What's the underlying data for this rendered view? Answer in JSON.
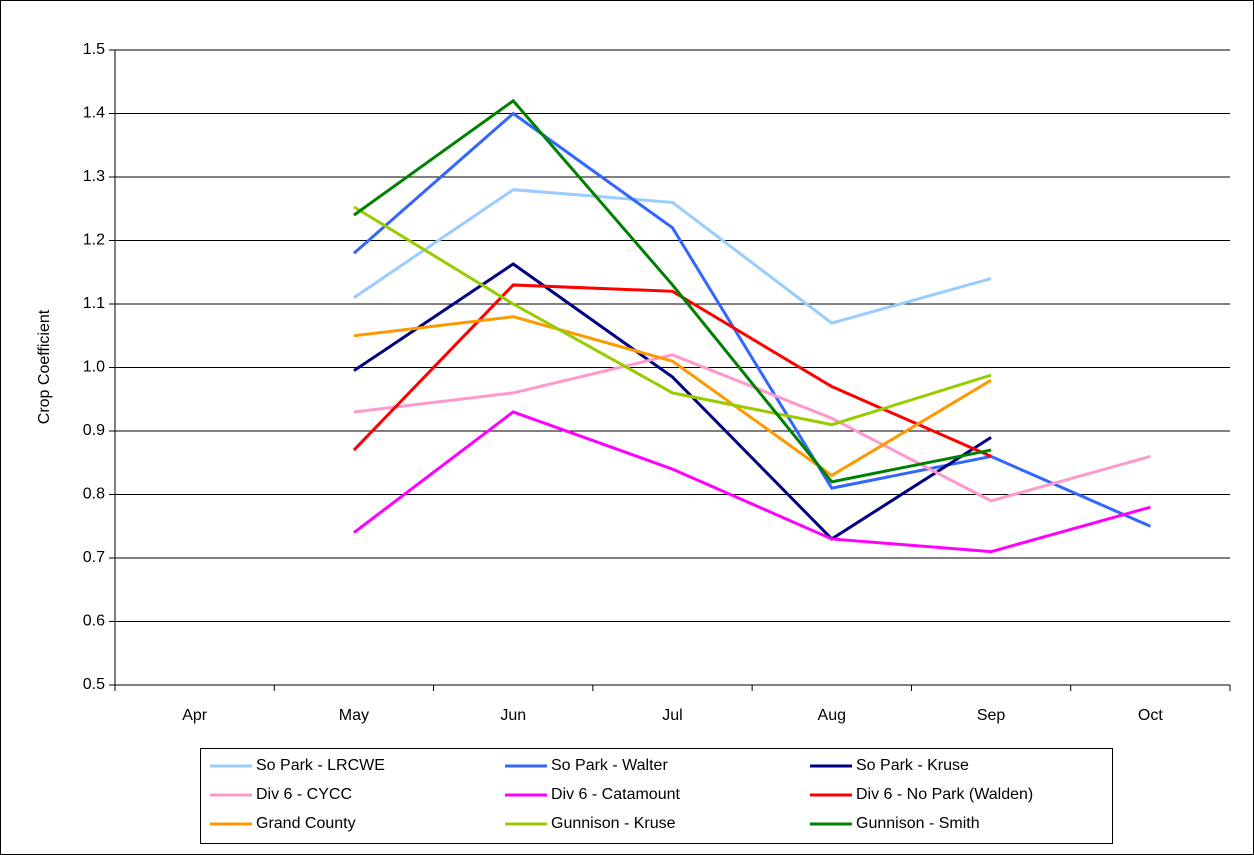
{
  "chart_data": {
    "type": "line",
    "y_label": "Crop Coefficient",
    "categories": [
      "Apr",
      "May",
      "Jun",
      "Jul",
      "Aug",
      "Sep",
      "Oct"
    ],
    "ylim": [
      0.5,
      1.5
    ],
    "yticks": [
      0.5,
      0.6,
      0.7,
      0.8,
      0.9,
      {
        "value": 1,
        "label": "1.0"
      },
      1.1,
      1.2,
      1.3,
      1.4,
      1.5
    ],
    "grid": true,
    "legend": "bottom",
    "series": [
      {
        "name": "So Park - LRCWE",
        "color": "#99ccff",
        "values": [
          null,
          1.11,
          1.28,
          1.26,
          1.07,
          1.14,
          null
        ]
      },
      {
        "name": "So Park - Walter",
        "color": "#3366ff",
        "values": [
          null,
          1.18,
          1.4,
          1.22,
          0.81,
          0.86,
          0.75
        ]
      },
      {
        "name": "So Park - Kruse",
        "color": "#000080",
        "values": [
          null,
          0.995,
          1.163,
          0.985,
          0.73,
          0.89,
          null
        ]
      },
      {
        "name": "Div 6 - CYCC",
        "color": "#ff99cc",
        "values": [
          null,
          0.93,
          0.96,
          1.02,
          0.92,
          0.79,
          0.86
        ]
      },
      {
        "name": "Div 6 - Catamount",
        "color": "#ff00ff",
        "values": [
          null,
          0.74,
          0.93,
          0.84,
          0.73,
          0.71,
          0.78
        ]
      },
      {
        "name": "Div 6 - No Park (Walden)",
        "color": "#ff0000",
        "values": [
          null,
          0.87,
          1.13,
          1.12,
          0.97,
          0.86,
          null
        ]
      },
      {
        "name": "Grand County",
        "color": "#ff9900",
        "values": [
          null,
          1.05,
          1.08,
          1.01,
          0.83,
          0.98,
          null
        ]
      },
      {
        "name": "Gunnison - Kruse",
        "color": "#99cc00",
        "values": [
          null,
          1.253,
          1.1,
          0.96,
          0.91,
          0.988,
          null
        ]
      },
      {
        "name": "Gunnison - Smith",
        "color": "#008000",
        "values": [
          null,
          1.24,
          1.42,
          1.13,
          0.82,
          0.87,
          null
        ]
      }
    ]
  }
}
